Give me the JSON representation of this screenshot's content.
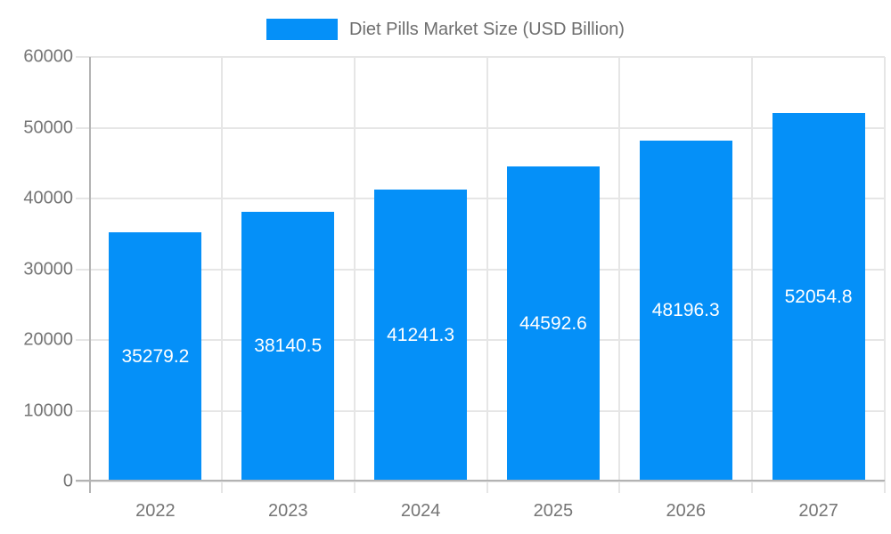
{
  "chart_data": {
    "type": "bar",
    "title": "Diet Pills Market Size (USD Billion)",
    "legend": {
      "label": "Diet Pills Market Size (USD Billion)",
      "position": "top"
    },
    "categories": [
      "2022",
      "2023",
      "2024",
      "2025",
      "2026",
      "2027"
    ],
    "values": [
      35279.2,
      38140.5,
      41241.3,
      44592.6,
      48196.3,
      52054.8
    ],
    "bar_labels": [
      "35279.2",
      "38140.5",
      "41241.3",
      "44592.6",
      "48196.3",
      "52054.8"
    ],
    "xlabel": "",
    "ylabel": "",
    "ylim": [
      0,
      60000
    ],
    "ytick_labels": [
      "0",
      "10000",
      "20000",
      "30000",
      "40000",
      "50000",
      "60000"
    ],
    "grid": true,
    "legend_position": "top",
    "colors": {
      "bar": "#0590f8",
      "grid": "#e6e6e6",
      "axis": "#b3b3b3",
      "tick_text": "#757575",
      "legend_text": "#6e6e6e",
      "bar_label_text": "#ffffff"
    }
  }
}
